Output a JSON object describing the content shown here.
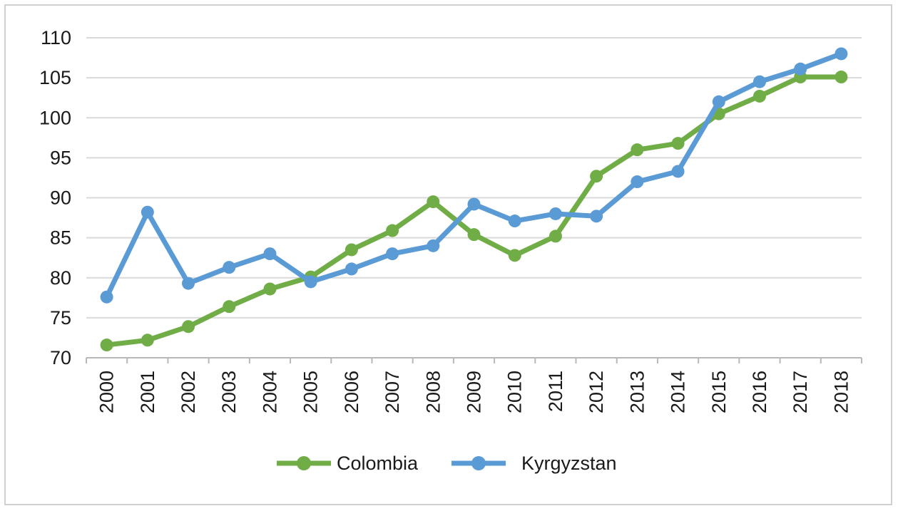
{
  "chart_data": {
    "type": "line",
    "title": "",
    "xlabel": "",
    "ylabel": "",
    "x": [
      "2000",
      "2001",
      "2002",
      "2003",
      "2004",
      "2005",
      "2006",
      "2007",
      "2008",
      "2009",
      "2010",
      "2011",
      "2012",
      "2013",
      "2014",
      "2015",
      "2016",
      "2017",
      "2018"
    ],
    "ylim": [
      70,
      110
    ],
    "yticks": [
      70,
      75,
      80,
      85,
      90,
      95,
      100,
      105,
      110
    ],
    "grid": true,
    "legend": "bottom",
    "series": [
      {
        "name": "Colombia",
        "color": "#70ad47",
        "values": [
          71.6,
          72.2,
          73.9,
          76.4,
          78.6,
          80.1,
          83.5,
          85.9,
          89.5,
          85.4,
          82.8,
          85.2,
          92.7,
          96.0,
          96.8,
          100.5,
          102.7,
          105.1,
          105.1
        ]
      },
      {
        "name": "Kyrgyzstan",
        "color": "#5b9bd5",
        "values": [
          77.6,
          88.2,
          79.3,
          81.3,
          83.0,
          79.5,
          81.1,
          83.0,
          84.0,
          89.2,
          87.1,
          88.0,
          87.7,
          92.0,
          93.3,
          102.0,
          104.5,
          106.1,
          108.0
        ]
      }
    ]
  }
}
